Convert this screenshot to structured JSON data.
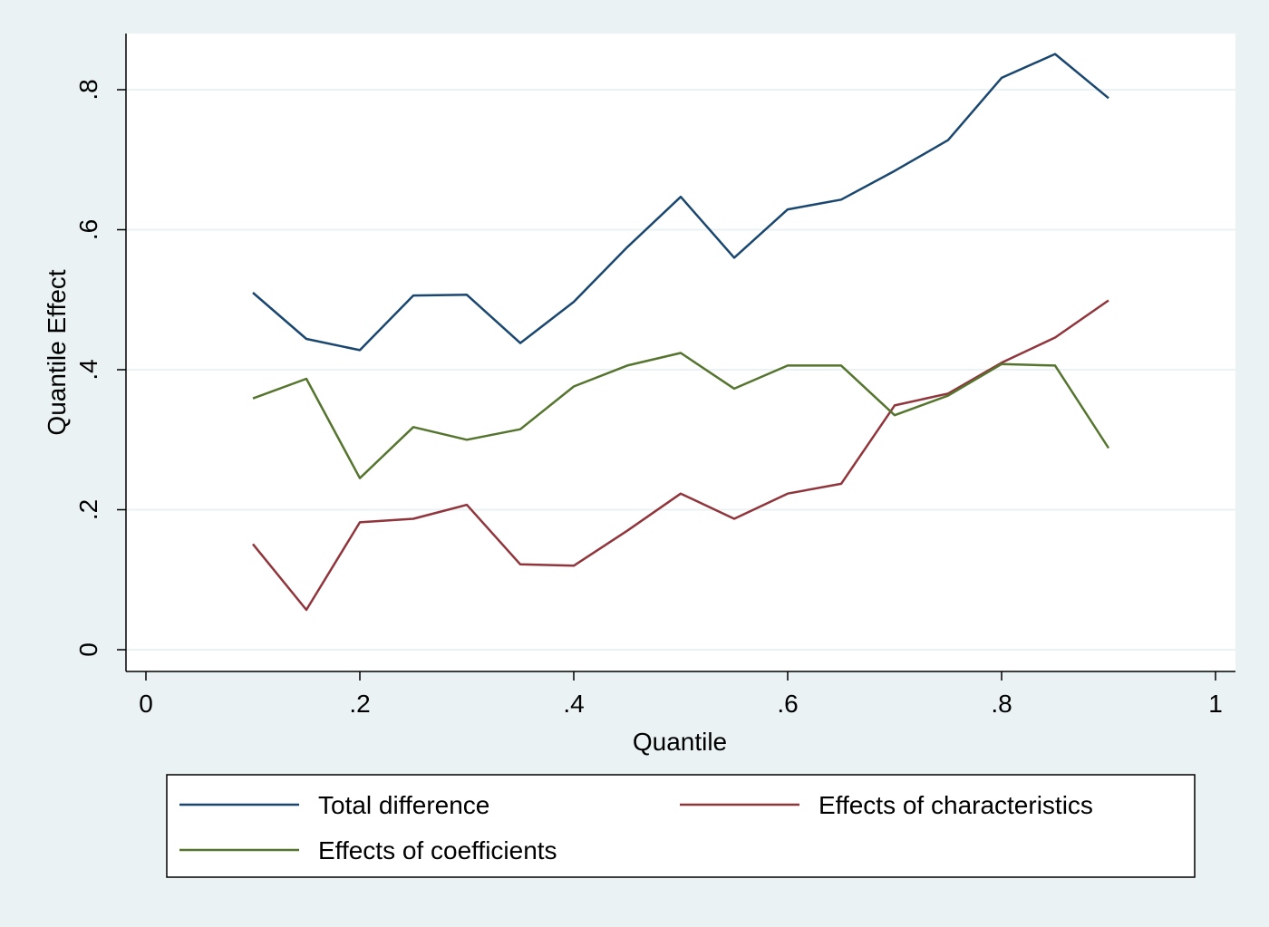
{
  "chart_data": {
    "type": "line",
    "title": "",
    "xlabel": "Quantile",
    "ylabel": "Quantile Effect",
    "xlim": [
      0,
      1
    ],
    "ylim": [
      0,
      0.88
    ],
    "x_ticks": [
      {
        "value": 0,
        "label": "0"
      },
      {
        "value": 0.2,
        "label": ".2"
      },
      {
        "value": 0.4,
        "label": ".4"
      },
      {
        "value": 0.6,
        "label": ".6"
      },
      {
        "value": 0.8,
        "label": ".8"
      },
      {
        "value": 1,
        "label": "1"
      }
    ],
    "y_ticks": [
      {
        "value": 0,
        "label": "0"
      },
      {
        "value": 0.2,
        "label": ".2"
      },
      {
        "value": 0.4,
        "label": ".4"
      },
      {
        "value": 0.6,
        "label": ".6"
      },
      {
        "value": 0.8,
        "label": ".8"
      }
    ],
    "grid": true,
    "legend_position": "bottom",
    "x": [
      0.1,
      0.15,
      0.2,
      0.25,
      0.3,
      0.35,
      0.4,
      0.45,
      0.5,
      0.55,
      0.6,
      0.65,
      0.7,
      0.75,
      0.8,
      0.85,
      0.9
    ],
    "series": [
      {
        "name": "Total difference",
        "color": "#1a476f",
        "values": [
          0.51,
          0.444,
          0.428,
          0.506,
          0.507,
          0.438,
          0.497,
          0.575,
          0.647,
          0.56,
          0.629,
          0.643,
          0.684,
          0.728,
          0.817,
          0.851,
          0.788
        ]
      },
      {
        "name": "Effects of characteristics",
        "color": "#90353b",
        "values": [
          0.151,
          0.057,
          0.182,
          0.187,
          0.207,
          0.122,
          0.12,
          0.17,
          0.223,
          0.187,
          0.223,
          0.237,
          0.349,
          0.366,
          0.41,
          0.446,
          0.499
        ]
      },
      {
        "name": "Effects of coefficients",
        "color": "#55752f",
        "values": [
          0.359,
          0.387,
          0.245,
          0.318,
          0.3,
          0.315,
          0.376,
          0.406,
          0.424,
          0.373,
          0.406,
          0.406,
          0.335,
          0.363,
          0.408,
          0.406,
          0.288
        ]
      }
    ]
  }
}
